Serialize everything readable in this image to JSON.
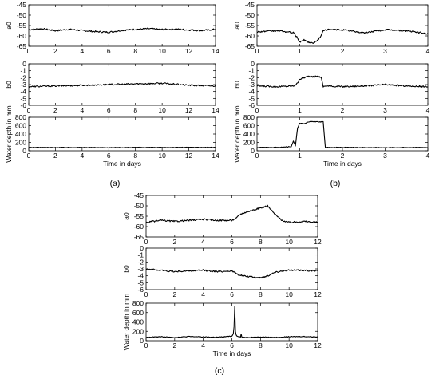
{
  "figure": {
    "panel_labels": [
      "(a)",
      "(b)",
      "(c)"
    ]
  },
  "chart_data": [
    {
      "id": "a-a0",
      "panel": "a",
      "type": "line",
      "xlabel": "",
      "ylabel": "a0",
      "xlim": [
        0,
        14
      ],
      "ylim": [
        -65,
        -45
      ],
      "xticks": [
        0,
        2,
        4,
        6,
        8,
        10,
        12,
        14
      ],
      "yticks": [
        -65,
        -60,
        -55,
        -50,
        -45
      ],
      "series": [
        {
          "x": [
            0,
            1,
            2,
            3,
            4,
            5,
            6,
            7,
            8,
            9,
            10,
            11,
            12,
            13,
            14
          ],
          "y": [
            -57,
            -56.5,
            -57.5,
            -56.8,
            -57.4,
            -57.9,
            -58.2,
            -57.3,
            -56.8,
            -56.5,
            -56.9,
            -56.7,
            -57.1,
            -57.4,
            -56.8
          ]
        }
      ]
    },
    {
      "id": "a-b0",
      "panel": "a",
      "type": "line",
      "xlabel": "",
      "ylabel": "b0",
      "xlim": [
        0,
        14
      ],
      "ylim": [
        -6,
        0
      ],
      "xticks": [
        0,
        2,
        4,
        6,
        8,
        10,
        12,
        14
      ],
      "yticks": [
        -6,
        -5,
        -4,
        -3,
        -2,
        -1,
        0
      ],
      "series": [
        {
          "x": [
            0,
            2,
            4,
            6,
            8,
            10,
            12,
            14
          ],
          "y": [
            -3.3,
            -3.2,
            -3.1,
            -3.0,
            -2.9,
            -2.8,
            -3.1,
            -3.2
          ]
        }
      ]
    },
    {
      "id": "a-depth",
      "panel": "a",
      "type": "line",
      "xlabel": "Time in days",
      "ylabel": "Water depth in mm",
      "xlim": [
        0,
        14
      ],
      "ylim": [
        0,
        800
      ],
      "xticks": [
        0,
        2,
        4,
        6,
        8,
        10,
        12,
        14
      ],
      "yticks": [
        0,
        200,
        400,
        600,
        800
      ],
      "series": [
        {
          "x": [
            0,
            2,
            4,
            6,
            8,
            10,
            12,
            14
          ],
          "y": [
            80,
            78,
            80,
            75,
            80,
            78,
            82,
            80
          ]
        }
      ]
    },
    {
      "id": "b-a0",
      "panel": "b",
      "type": "line",
      "xlabel": "",
      "ylabel": "a0",
      "xlim": [
        0,
        4
      ],
      "ylim": [
        -65,
        -45
      ],
      "xticks": [
        0,
        1,
        2,
        3,
        4
      ],
      "yticks": [
        -65,
        -60,
        -55,
        -50,
        -45
      ],
      "series": [
        {
          "x": [
            0,
            0.5,
            0.85,
            0.95,
            1.0,
            1.1,
            1.2,
            1.3,
            1.4,
            1.5,
            1.55,
            1.6,
            2,
            2.5,
            3,
            3.5,
            4
          ],
          "y": [
            -58,
            -57.5,
            -58.5,
            -61,
            -63,
            -62,
            -63,
            -63.5,
            -62.5,
            -60,
            -57.5,
            -57,
            -57,
            -58.5,
            -57,
            -57.5,
            -59
          ]
        }
      ]
    },
    {
      "id": "b-b0",
      "panel": "b",
      "type": "line",
      "xlabel": "",
      "ylabel": "b0",
      "xlim": [
        0,
        4
      ],
      "ylim": [
        -6,
        0
      ],
      "xticks": [
        0,
        1,
        2,
        3,
        4
      ],
      "yticks": [
        -6,
        -5,
        -4,
        -3,
        -2,
        -1,
        0
      ],
      "series": [
        {
          "x": [
            0,
            0.5,
            0.85,
            0.95,
            1.0,
            1.1,
            1.2,
            1.3,
            1.4,
            1.5,
            1.55,
            1.6,
            2,
            2.5,
            3,
            3.5,
            4
          ],
          "y": [
            -3.2,
            -3.3,
            -3.2,
            -2.8,
            -2.2,
            -2.0,
            -1.8,
            -1.9,
            -1.8,
            -1.9,
            -3.3,
            -3.2,
            -3.3,
            -3.2,
            -3.0,
            -3.2,
            -3.3
          ]
        }
      ]
    },
    {
      "id": "b-depth",
      "panel": "b",
      "type": "line",
      "xlabel": "Time in days",
      "ylabel": "Water depth in mm",
      "xlim": [
        0,
        4
      ],
      "ylim": [
        0,
        800
      ],
      "xticks": [
        0,
        1,
        2,
        3,
        4
      ],
      "yticks": [
        0,
        200,
        400,
        600,
        800
      ],
      "series": [
        {
          "x": [
            0,
            0.5,
            0.8,
            0.85,
            0.9,
            0.95,
            1.0,
            1.05,
            1.1,
            1.2,
            1.3,
            1.4,
            1.5,
            1.55,
            1.6,
            2,
            3,
            4
          ],
          "y": [
            80,
            80,
            100,
            230,
            120,
            550,
            650,
            660,
            650,
            680,
            700,
            690,
            690,
            690,
            80,
            80,
            75,
            80
          ]
        }
      ]
    },
    {
      "id": "c-a0",
      "panel": "c",
      "type": "line",
      "xlabel": "",
      "ylabel": "a0",
      "xlim": [
        0,
        12
      ],
      "ylim": [
        -65,
        -45
      ],
      "xticks": [
        0,
        2,
        4,
        6,
        8,
        10,
        12
      ],
      "yticks": [
        -65,
        -60,
        -55,
        -50,
        -45
      ],
      "series": [
        {
          "x": [
            0,
            1,
            2,
            3,
            4,
            5,
            6,
            6.3,
            6.6,
            7,
            7.5,
            8,
            8.5,
            9,
            9.5,
            10,
            11,
            12
          ],
          "y": [
            -58,
            -57,
            -57.5,
            -57,
            -56.5,
            -57,
            -57,
            -56,
            -54,
            -53,
            -52,
            -51,
            -50,
            -54,
            -57,
            -58,
            -57.5,
            -58
          ]
        }
      ]
    },
    {
      "id": "c-b0",
      "panel": "c",
      "type": "line",
      "xlabel": "",
      "ylabel": "b0",
      "xlim": [
        0,
        12
      ],
      "ylim": [
        -6,
        0
      ],
      "xticks": [
        0,
        2,
        4,
        6,
        8,
        10,
        12
      ],
      "yticks": [
        -6,
        -5,
        -4,
        -3,
        -2,
        -1,
        0
      ],
      "series": [
        {
          "x": [
            0,
            1,
            2,
            3,
            4,
            5,
            6,
            6.4,
            6.8,
            7.5,
            8,
            8.5,
            9,
            9.5,
            10,
            11,
            12
          ],
          "y": [
            -3.0,
            -3.2,
            -3.4,
            -3.3,
            -3.2,
            -3.4,
            -3.3,
            -3.8,
            -4.0,
            -4.2,
            -4.3,
            -4.0,
            -3.5,
            -3.3,
            -3.2,
            -3.2,
            -3.3
          ]
        }
      ]
    },
    {
      "id": "c-depth",
      "panel": "c",
      "type": "line",
      "xlabel": "Time in days",
      "ylabel": "Water depth in mm",
      "xlim": [
        0,
        12
      ],
      "ylim": [
        0,
        800
      ],
      "xticks": [
        0,
        2,
        4,
        6,
        8,
        10,
        12
      ],
      "yticks": [
        0,
        200,
        400,
        600,
        800
      ],
      "series": [
        {
          "x": [
            0,
            1,
            2,
            3,
            4,
            5,
            6,
            6.1,
            6.15,
            6.2,
            6.25,
            6.3,
            6.4,
            6.6,
            6.65,
            6.7,
            7,
            8,
            9,
            10,
            11,
            12
          ],
          "y": [
            70,
            85,
            70,
            90,
            80,
            75,
            95,
            150,
            300,
            740,
            200,
            120,
            90,
            80,
            140,
            80,
            70,
            80,
            70,
            85,
            90,
            80
          ]
        }
      ]
    }
  ]
}
